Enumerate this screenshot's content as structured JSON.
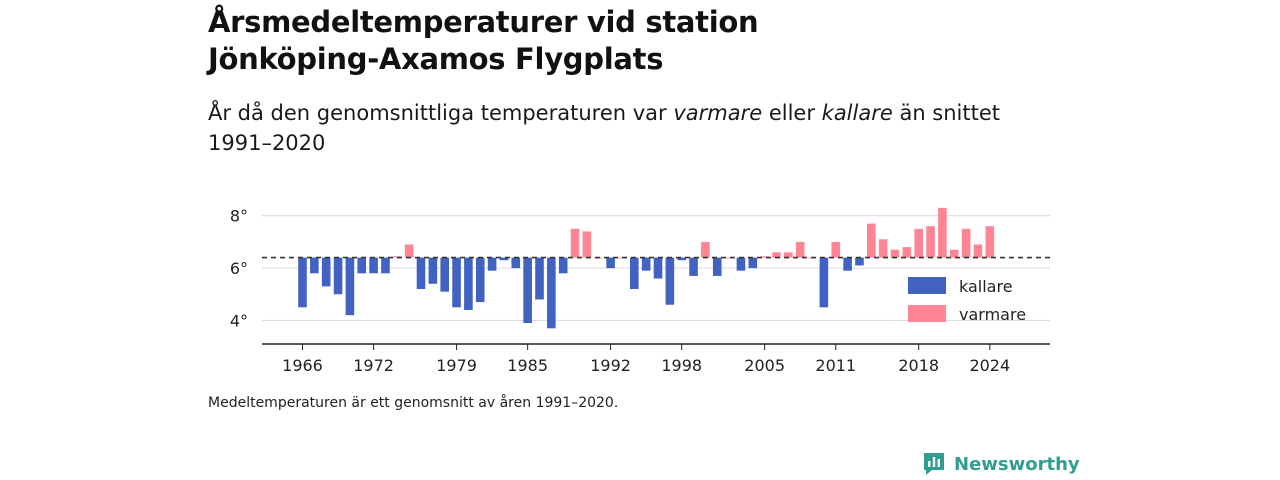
{
  "header": {
    "title_line1": "Årsmedeltemperaturer vid station",
    "title_line2": "Jönköping-Axamos Flygplats",
    "subtitle_part1": "År då den genomsnittliga temperaturen var ",
    "subtitle_em1": "varmare",
    "subtitle_part2": " eller ",
    "subtitle_em2": "kallare",
    "subtitle_part3": " än snittet 1991–2020"
  },
  "footnote": "Medeltemperaturen är ett genomsnitt av åren 1991–2020.",
  "brand": {
    "name": "Newsworthy",
    "color": "#2f9e8f",
    "icon": "newsworthy-logo-icon"
  },
  "colors": {
    "colder": "#4262c2",
    "warmer": "#ff8494",
    "reference": "#333333"
  },
  "chart_data": {
    "type": "bar",
    "baseline": 6.4,
    "ylim": [
      3.1,
      8.6
    ],
    "yticks": [
      4,
      6,
      8
    ],
    "ytick_suffix": "°",
    "xticks": [
      1966,
      1972,
      1979,
      1985,
      1992,
      1998,
      2005,
      2011,
      2018,
      2024
    ],
    "legend": {
      "position": "bottom-right",
      "labels": {
        "colder": "kallare",
        "warmer": "varmare"
      }
    },
    "grid": true,
    "years": [
      1966,
      1967,
      1968,
      1969,
      1970,
      1971,
      1972,
      1973,
      1974,
      1975,
      1976,
      1977,
      1978,
      1979,
      1980,
      1981,
      1982,
      1983,
      1984,
      1985,
      1986,
      1987,
      1988,
      1989,
      1990,
      1991,
      1992,
      1993,
      1994,
      1995,
      1996,
      1997,
      1998,
      1999,
      2000,
      2001,
      2002,
      2003,
      2004,
      2005,
      2006,
      2007,
      2008,
      2009,
      2010,
      2011,
      2012,
      2013,
      2014,
      2015,
      2016,
      2017,
      2018,
      2019,
      2020,
      2021,
      2022,
      2023,
      2024
    ],
    "values": [
      4.5,
      5.8,
      5.3,
      5.0,
      4.2,
      5.8,
      5.8,
      5.8,
      6.45,
      6.9,
      5.2,
      5.4,
      5.1,
      4.5,
      4.4,
      4.7,
      5.9,
      6.3,
      6.0,
      3.9,
      4.8,
      3.7,
      5.8,
      7.5,
      7.4,
      6.4,
      6.0,
      6.4,
      5.2,
      5.9,
      5.6,
      4.6,
      6.3,
      5.7,
      7.0,
      5.7,
      6.4,
      5.9,
      6.0,
      6.45,
      6.6,
      6.6,
      7.0,
      6.4,
      4.5,
      7.0,
      5.9,
      6.1,
      7.7,
      7.1,
      6.7,
      6.8,
      7.5,
      7.6,
      8.3,
      6.7,
      7.5,
      6.9,
      7.6
    ]
  }
}
